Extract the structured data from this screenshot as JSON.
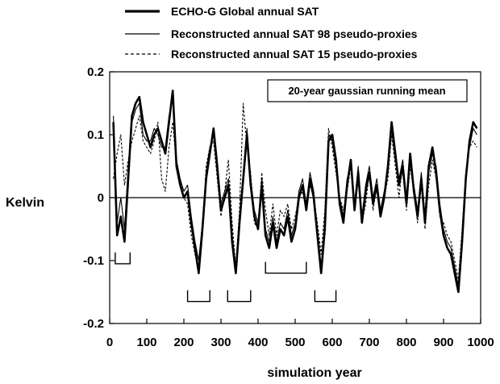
{
  "chart_data": {
    "type": "line",
    "xlabel": "simulation year",
    "ylabel": "Kelvin",
    "xlim": [
      0,
      1000
    ],
    "ylim": [
      -0.2,
      0.2
    ],
    "xticks": [
      0,
      100,
      200,
      300,
      400,
      500,
      600,
      700,
      800,
      900,
      1000
    ],
    "yticks": [
      {
        "value": -0.2,
        "label": "-0.2"
      },
      {
        "value": -0.1,
        "label": "-0.1"
      },
      {
        "value": 0,
        "label": "0"
      },
      {
        "value": 0.1,
        "label": "0.1"
      },
      {
        "value": 0.2,
        "label": "0.2"
      }
    ],
    "grid": false,
    "legend_position": "top",
    "annotation": "20-year gaussian running mean",
    "series": [
      {
        "name": "ECHO-G Global annual SAT",
        "style": "thick",
        "x": [
          10,
          20,
          30,
          40,
          50,
          60,
          70,
          80,
          90,
          100,
          110,
          120,
          130,
          140,
          150,
          160,
          170,
          180,
          190,
          200,
          210,
          220,
          230,
          240,
          250,
          260,
          270,
          280,
          290,
          300,
          310,
          320,
          330,
          340,
          350,
          360,
          370,
          380,
          390,
          400,
          410,
          420,
          430,
          440,
          450,
          460,
          470,
          480,
          490,
          500,
          510,
          520,
          530,
          540,
          550,
          560,
          570,
          580,
          590,
          600,
          610,
          620,
          630,
          640,
          650,
          660,
          670,
          680,
          690,
          700,
          710,
          720,
          730,
          740,
          750,
          760,
          770,
          780,
          790,
          800,
          810,
          820,
          830,
          840,
          850,
          860,
          870,
          880,
          890,
          900,
          910,
          920,
          930,
          940,
          950,
          960,
          970,
          980,
          990
        ],
        "values": [
          0.12,
          -0.06,
          -0.03,
          -0.07,
          0.03,
          0.13,
          0.15,
          0.16,
          0.12,
          0.1,
          0.08,
          0.1,
          0.11,
          0.09,
          0.07,
          0.12,
          0.17,
          0.05,
          0.02,
          0.0,
          0.01,
          -0.04,
          -0.08,
          -0.12,
          -0.05,
          0.03,
          0.07,
          0.11,
          0.05,
          -0.02,
          0.0,
          0.02,
          -0.07,
          -0.12,
          -0.04,
          0.03,
          0.1,
          0.02,
          -0.03,
          -0.05,
          0.02,
          -0.06,
          -0.08,
          -0.04,
          -0.08,
          -0.05,
          -0.06,
          -0.03,
          -0.07,
          -0.05,
          0.0,
          0.02,
          -0.02,
          0.03,
          0.0,
          -0.06,
          -0.12,
          -0.05,
          0.09,
          0.1,
          0.06,
          -0.01,
          -0.04,
          0.02,
          0.06,
          -0.02,
          0.04,
          -0.04,
          0.01,
          0.04,
          -0.01,
          0.02,
          -0.03,
          0.0,
          0.05,
          0.12,
          0.07,
          0.02,
          0.05,
          -0.01,
          0.07,
          0.01,
          -0.03,
          0.03,
          -0.04,
          0.05,
          0.08,
          0.04,
          -0.02,
          -0.06,
          -0.08,
          -0.09,
          -0.12,
          -0.15,
          -0.07,
          0.03,
          0.09,
          0.12,
          0.11
        ]
      },
      {
        "name": "Reconstructed annual SAT 98 pseudo-proxies",
        "style": "thin",
        "x": [
          10,
          20,
          30,
          40,
          50,
          60,
          70,
          80,
          90,
          100,
          110,
          120,
          130,
          140,
          150,
          160,
          170,
          180,
          190,
          200,
          210,
          220,
          230,
          240,
          250,
          260,
          270,
          280,
          290,
          300,
          310,
          320,
          330,
          340,
          350,
          360,
          370,
          380,
          390,
          400,
          410,
          420,
          430,
          440,
          450,
          460,
          470,
          480,
          490,
          500,
          510,
          520,
          530,
          540,
          550,
          560,
          570,
          580,
          590,
          600,
          610,
          620,
          630,
          640,
          650,
          660,
          670,
          680,
          690,
          700,
          710,
          720,
          730,
          740,
          750,
          760,
          770,
          780,
          790,
          800,
          810,
          820,
          830,
          840,
          850,
          860,
          870,
          880,
          890,
          900,
          910,
          920,
          930,
          940,
          950,
          960,
          970,
          980,
          990
        ],
        "values": [
          0.13,
          -0.04,
          0.0,
          -0.05,
          0.05,
          0.12,
          0.14,
          0.15,
          0.1,
          0.09,
          0.09,
          0.11,
          0.1,
          0.08,
          0.08,
          0.13,
          0.16,
          0.06,
          0.03,
          0.01,
          0.02,
          -0.03,
          -0.07,
          -0.1,
          -0.04,
          0.04,
          0.08,
          0.1,
          0.04,
          -0.01,
          0.01,
          0.03,
          -0.06,
          -0.11,
          -0.03,
          0.04,
          0.11,
          0.03,
          -0.02,
          -0.04,
          0.03,
          -0.05,
          -0.07,
          -0.03,
          -0.07,
          -0.04,
          -0.05,
          -0.02,
          -0.06,
          -0.04,
          0.01,
          0.03,
          -0.01,
          0.04,
          0.01,
          -0.05,
          -0.11,
          -0.04,
          0.1,
          0.09,
          0.05,
          0.0,
          -0.03,
          0.03,
          0.05,
          -0.01,
          0.05,
          -0.03,
          0.02,
          0.05,
          0.0,
          0.03,
          -0.02,
          0.01,
          0.04,
          0.11,
          0.06,
          0.03,
          0.06,
          0.0,
          0.06,
          0.02,
          -0.02,
          0.04,
          -0.03,
          0.04,
          0.07,
          0.05,
          -0.01,
          -0.05,
          -0.07,
          -0.08,
          -0.11,
          -0.14,
          -0.06,
          0.04,
          0.08,
          0.11,
          0.1
        ]
      },
      {
        "name": "Reconstructed annual SAT 15 pseudo-proxies",
        "style": "dashed",
        "x": [
          10,
          20,
          30,
          40,
          50,
          60,
          70,
          80,
          90,
          100,
          110,
          120,
          130,
          140,
          150,
          160,
          170,
          180,
          190,
          200,
          210,
          220,
          230,
          240,
          250,
          260,
          270,
          280,
          290,
          300,
          310,
          320,
          330,
          340,
          350,
          360,
          370,
          380,
          390,
          400,
          410,
          420,
          430,
          440,
          450,
          460,
          470,
          480,
          490,
          500,
          510,
          520,
          530,
          540,
          550,
          560,
          570,
          580,
          590,
          600,
          610,
          620,
          630,
          640,
          650,
          660,
          670,
          680,
          690,
          700,
          710,
          720,
          730,
          740,
          750,
          760,
          770,
          780,
          790,
          800,
          810,
          820,
          830,
          840,
          850,
          860,
          870,
          880,
          890,
          900,
          910,
          920,
          930,
          940,
          950,
          960,
          970,
          980,
          990
        ],
        "values": [
          0.03,
          0.07,
          0.1,
          0.02,
          0.06,
          0.09,
          0.11,
          0.13,
          0.09,
          0.08,
          0.07,
          0.09,
          0.12,
          0.03,
          0.01,
          0.08,
          0.12,
          0.05,
          0.03,
          0.0,
          -0.01,
          -0.06,
          -0.09,
          -0.11,
          -0.06,
          0.05,
          0.08,
          0.09,
          0.03,
          -0.03,
          0.01,
          0.06,
          -0.04,
          -0.11,
          -0.02,
          0.15,
          0.08,
          0.04,
          -0.04,
          -0.05,
          0.04,
          -0.02,
          -0.06,
          -0.01,
          -0.06,
          -0.02,
          -0.03,
          -0.01,
          -0.05,
          -0.03,
          0.0,
          0.01,
          -0.02,
          0.02,
          0.0,
          -0.04,
          -0.09,
          -0.02,
          0.11,
          0.08,
          0.04,
          0.0,
          -0.02,
          0.01,
          0.05,
          -0.02,
          0.03,
          -0.04,
          -0.01,
          0.04,
          -0.02,
          0.02,
          -0.03,
          0.0,
          0.03,
          0.1,
          0.05,
          0.0,
          0.06,
          -0.02,
          0.05,
          0.01,
          -0.04,
          0.03,
          -0.05,
          0.02,
          0.06,
          0.03,
          -0.03,
          -0.04,
          -0.06,
          -0.07,
          -0.1,
          -0.13,
          -0.05,
          0.04,
          0.08,
          0.09,
          0.08
        ]
      }
    ],
    "brackets": [
      {
        "x_start": 15,
        "x_end": 55,
        "y": -0.105
      },
      {
        "x_start": 210,
        "x_end": 270,
        "y": -0.165
      },
      {
        "x_start": 318,
        "x_end": 380,
        "y": -0.165
      },
      {
        "x_start": 420,
        "x_end": 530,
        "y": -0.12
      },
      {
        "x_start": 553,
        "x_end": 610,
        "y": -0.165
      }
    ]
  }
}
